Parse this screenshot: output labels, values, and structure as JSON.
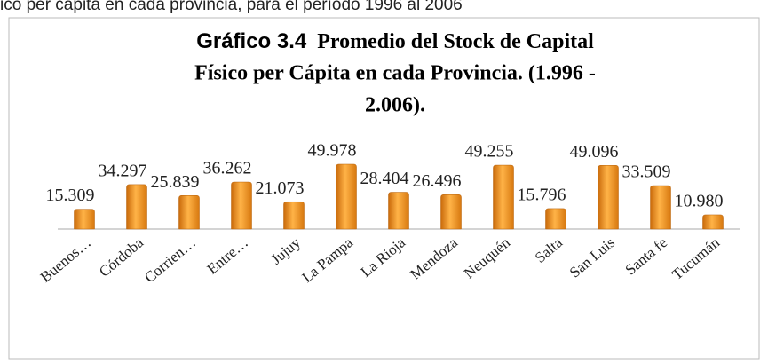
{
  "header_text": "ico per cápita en cada provincia, para el período 1996 al 2006",
  "chart_data": {
    "type": "bar",
    "title_prefix": "Gráfico 3.4",
    "title_lines": [
      "Promedio del Stock de Capital",
      "Físico per Cápita en cada Provincia. (1.996 -",
      "2.006)."
    ],
    "categories": [
      "Buenos…",
      "Córdoba",
      "Corrien…",
      "Entre…",
      "Jujuy",
      "La Pampa",
      "La Rioja",
      "Mendoza",
      "Neuquén",
      "Salta",
      "San Luis",
      "Santa fe",
      "Tucumán"
    ],
    "values": [
      15309,
      34297,
      25839,
      36262,
      21073,
      49978,
      28404,
      26496,
      49255,
      15796,
      49096,
      33509,
      10980
    ],
    "value_labels": [
      "15.309",
      "34.297",
      "25.839",
      "36.262",
      "21.073",
      "49.978",
      "28.404",
      "26.496",
      "49.255",
      "15.796",
      "49.096",
      "33.509",
      "10.980"
    ],
    "color": "#f39a1e"
  }
}
